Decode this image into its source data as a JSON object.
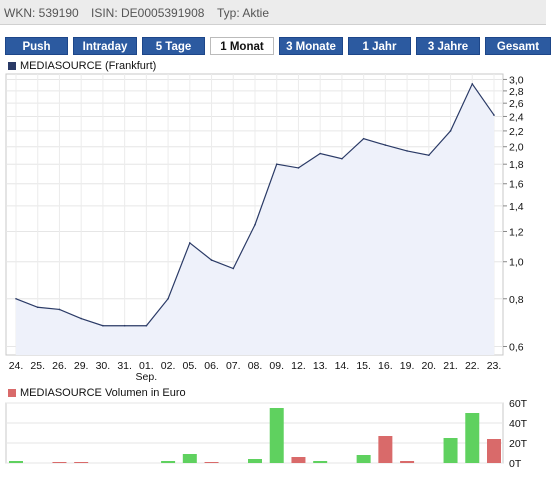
{
  "info": {
    "wkn": "WKN: 539190",
    "isin": "ISIN: DE0005391908",
    "typ": "Typ: Aktie"
  },
  "tabs": [
    {
      "label": "Push",
      "active": false
    },
    {
      "label": "Intraday",
      "active": false
    },
    {
      "label": "5 Tage",
      "active": false
    },
    {
      "label": "1 Monat",
      "active": true
    },
    {
      "label": "3 Monate",
      "active": false
    },
    {
      "label": "1 Jahr",
      "active": false
    },
    {
      "label": "3 Jahre",
      "active": false
    },
    {
      "label": "Gesamt",
      "active": false
    }
  ],
  "colors": {
    "line": "#2a3a66",
    "area": "#eef1fa",
    "up": "#5fd15f",
    "down": "#d96a6a",
    "tab": "#2c5aa0"
  },
  "chart_data": [
    {
      "type": "area",
      "legend": "MEDIASOURCE (Frankfurt)",
      "x_labels": [
        "24.",
        "25.",
        "26.",
        "29.",
        "30.",
        "31.",
        "01.",
        "02.",
        "05.",
        "06.",
        "07.",
        "08.",
        "09.",
        "12.",
        "13.",
        "14.",
        "15.",
        "16.",
        "19.",
        "20.",
        "21.",
        "22.",
        "23."
      ],
      "x_sublabel": "Sep.",
      "y_ticks": [
        "0,6",
        "0,8",
        "1,0",
        "1,2",
        "1,4",
        "1,6",
        "1,8",
        "2,0",
        "2,2",
        "2,4",
        "2,6",
        "2,8",
        "3,0"
      ],
      "y_scale": "log",
      "ylim": [
        0.57,
        3.1
      ],
      "values": [
        0.8,
        0.76,
        0.75,
        0.71,
        0.68,
        0.68,
        0.68,
        0.8,
        1.12,
        1.01,
        0.96,
        1.25,
        1.8,
        1.76,
        1.92,
        1.86,
        2.1,
        2.02,
        1.95,
        1.9,
        2.2,
        2.92,
        2.42
      ],
      "grid": true
    },
    {
      "type": "bar",
      "legend": "MEDIASOURCE Volumen in Euro",
      "y_ticks": [
        "0T",
        "20T",
        "40T",
        "60T"
      ],
      "ylim": [
        0,
        60
      ],
      "values": [
        2,
        0,
        1,
        1,
        0,
        0,
        0,
        2,
        9,
        1,
        0,
        4,
        55,
        6,
        2,
        0,
        8,
        27,
        2,
        0,
        25,
        50,
        24
      ],
      "direction": [
        "up",
        "up",
        "down",
        "down",
        "up",
        "up",
        "up",
        "up",
        "up",
        "down",
        "up",
        "up",
        "up",
        "down",
        "up",
        "up",
        "up",
        "down",
        "down",
        "up",
        "up",
        "up",
        "down"
      ],
      "grid": true
    }
  ]
}
